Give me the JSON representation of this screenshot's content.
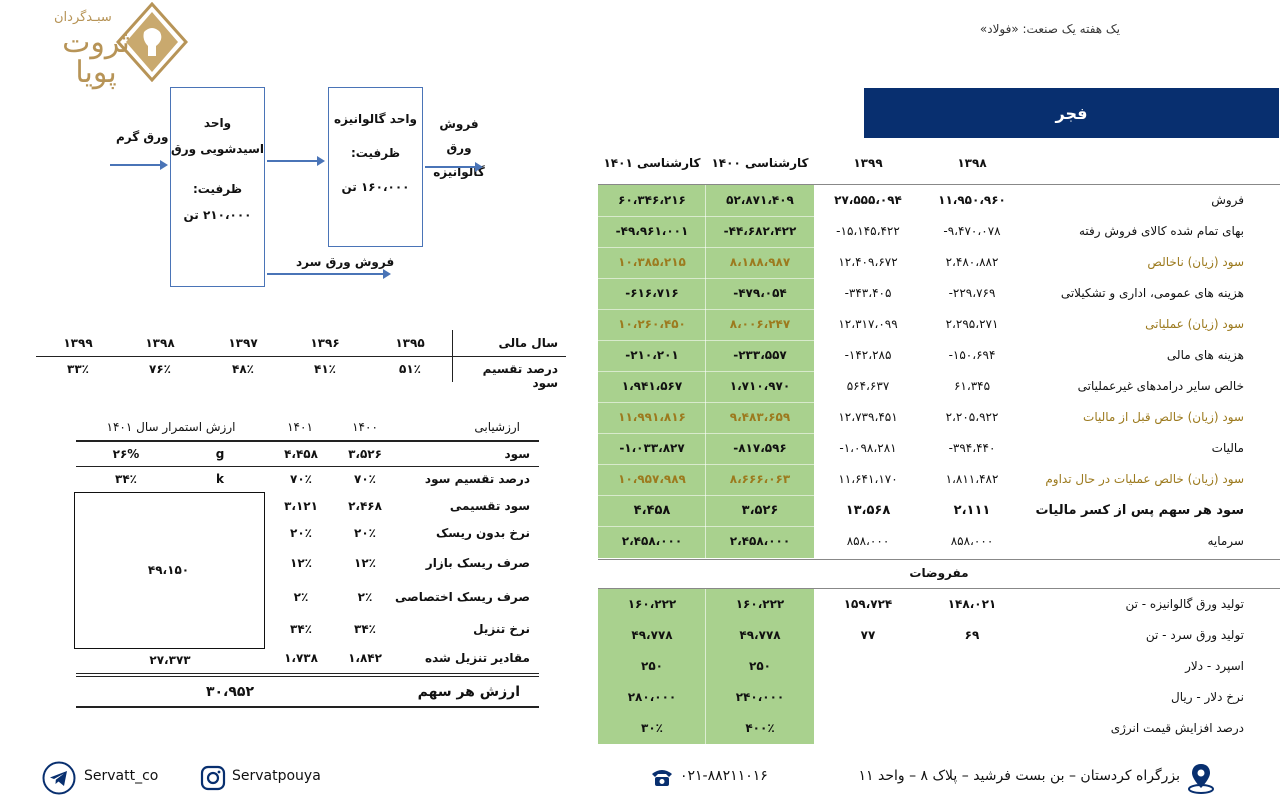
{
  "header": {
    "title": "یک هفته یک صنعت: «فولاد»",
    "logo_top": "سبـدگردان",
    "logo_main": "ثروت پویا"
  },
  "company": "فجر",
  "diagram": {
    "input_label": "ورق گرم",
    "unit1_title": "واحد",
    "unit1_name": "اسیدشویی ورق",
    "unit1_cap_label": "ظرفیت:",
    "unit1_cap": "۲۱۰،۰۰۰ تن",
    "unit2_title": "واحد گالوانیزه",
    "unit2_cap_label": "ظرفیت:",
    "unit2_cap": "۱۶۰،۰۰۰ تن",
    "out1_line1": "فروش ورق",
    "out1_line2": "گالوانیزه",
    "out2": "فروش ورق سرد"
  },
  "dividend_table": {
    "row1_label": "سال مالی",
    "row2_label": "درصد تقسیم سود",
    "years": [
      "۱۳۹۵",
      "۱۳۹۶",
      "۱۳۹۷",
      "۱۳۹۸",
      "۱۳۹۹"
    ],
    "values": [
      "۵۱٪",
      "۴۱٪",
      "۴۸٪",
      "۷۶٪",
      "۳۳٪"
    ]
  },
  "valuation": {
    "headers": {
      "label": "ارزشیابی",
      "c1400": "۱۴۰۰",
      "c1401": "۱۴۰۱",
      "gordon": "ارزش استمرار سال ۱۴۰۱"
    },
    "rows": [
      {
        "label": "سود",
        "v1400": "۳،۵۲۶",
        "v1401": "۴،۴۵۸"
      },
      {
        "label": "درصد تقسیم سود",
        "v1400": "۷۰٪",
        "v1401": "۷۰٪"
      },
      {
        "label": "سود تقسیمی",
        "v1400": "۲،۴۶۸",
        "v1401": "۳،۱۲۱"
      },
      {
        "label": "نرخ بدون ریسک",
        "v1400": "۲۰٪",
        "v1401": "۲۰٪"
      },
      {
        "label": "صرف ریسک بازار",
        "v1400": "۱۲٪",
        "v1401": "۱۲٪"
      },
      {
        "label": "صرف ریسک اختصاصی",
        "v1400": "۲٪",
        "v1401": "۲٪"
      },
      {
        "label": "نرخ تنزیل",
        "v1400": "۳۴٪",
        "v1401": "۳۴٪"
      },
      {
        "label": "مقادیر تنزیل شده",
        "v1400": "۱،۸۴۲",
        "v1401": "۱،۷۳۸"
      }
    ],
    "g_label": "g",
    "g_value": "۲۶%",
    "k_label": "k",
    "k_value": "۳۴٪",
    "terminal_value": "۴۹،۱۵۰",
    "discounted_terminal": "۲۷،۳۷۳",
    "share_value_label": "ارزش هر سهم",
    "share_value": "۳۰،۹۵۲"
  },
  "financials": {
    "headers": [
      "کارشناسی ۱۴۰۱",
      "کارشناسی ۱۴۰۰",
      "۱۳۹۹",
      "۱۳۹۸"
    ],
    "rows": [
      {
        "label": "فروش",
        "gold": false,
        "bold": false,
        "v": [
          "۶۰،۳۴۶،۲۱۶",
          "۵۲،۸۷۱،۴۰۹",
          "۲۷،۵۵۵،۰۹۴",
          "۱۱،۹۵۰،۹۶۰"
        ]
      },
      {
        "label": "بهای تمام شده کالای فروش رفته",
        "gold": false,
        "bold": false,
        "v": [
          "-۴۹،۹۶۱،۰۰۱",
          "-۴۴،۶۸۲،۴۲۲",
          "-۱۵،۱۴۵،۴۲۲",
          "-۹،۴۷۰،۰۷۸"
        ]
      },
      {
        "label": "سود (زیان) ناخالص",
        "gold": true,
        "bold": false,
        "v": [
          "۱۰،۳۸۵،۲۱۵",
          "۸،۱۸۸،۹۸۷",
          "۱۲،۴۰۹،۶۷۲",
          "۲،۴۸۰،۸۸۲"
        ]
      },
      {
        "label": "هزینه های عمومی، اداری و تشکیلاتی",
        "gold": false,
        "bold": false,
        "v": [
          "-۶۱۶،۷۱۶",
          "-۴۷۹،۰۵۴",
          "-۳۴۳،۴۰۵",
          "-۲۲۹،۷۶۹"
        ]
      },
      {
        "label": "سود (زیان) عملیاتی",
        "gold": true,
        "bold": false,
        "v": [
          "۱۰،۲۶۰،۴۵۰",
          "۸،۰۰۶،۲۴۷",
          "۱۲،۳۱۷،۰۹۹",
          "۲،۲۹۵،۲۷۱"
        ]
      },
      {
        "label": "هزینه های مالی",
        "gold": false,
        "bold": false,
        "v": [
          "-۲۱۰،۲۰۱",
          "-۲۳۳،۵۵۷",
          "-۱۴۲،۲۸۵",
          "-۱۵۰،۶۹۴"
        ]
      },
      {
        "label": "خالص سایر درامدهای غیرعملیاتی",
        "gold": false,
        "bold": false,
        "v": [
          "۱،۹۴۱،۵۶۷",
          "۱،۷۱۰،۹۷۰",
          "۵۶۴،۶۳۷",
          "۶۱،۳۴۵"
        ]
      },
      {
        "label": "سود (زیان) خالص  قبل از مالیات",
        "gold": true,
        "bold": false,
        "v": [
          "۱۱،۹۹۱،۸۱۶",
          "۹،۴۸۳،۶۵۹",
          "۱۲،۷۳۹،۴۵۱",
          "۲،۲۰۵،۹۲۲"
        ]
      },
      {
        "label": "مالیات",
        "gold": false,
        "bold": false,
        "v": [
          "-۱،۰۳۳،۸۲۷",
          "-۸۱۷،۵۹۶",
          "-۱،۰۹۸،۲۸۱",
          "-۳۹۴،۴۴۰"
        ]
      },
      {
        "label": "سود (زیان) خالص عملیات در حال تداوم",
        "gold": true,
        "bold": false,
        "v": [
          "۱۰،۹۵۷،۹۸۹",
          "۸،۶۶۶،۰۶۳",
          "۱۱،۶۴۱،۱۷۰",
          "۱،۸۱۱،۴۸۲"
        ]
      },
      {
        "label": "سود هر سهم پس از کسر مالیات",
        "gold": false,
        "bold": true,
        "v": [
          "۴،۴۵۸",
          "۳،۵۲۶",
          "۱۳،۵۶۸",
          "۲،۱۱۱"
        ]
      },
      {
        "label": "سرمایه",
        "gold": false,
        "bold": false,
        "v": [
          "۲،۴۵۸،۰۰۰",
          "۲،۴۵۸،۰۰۰",
          "۸۵۸،۰۰۰",
          "۸۵۸،۰۰۰"
        ]
      }
    ],
    "assumptions_title": "مفروضات",
    "assumptions": [
      {
        "label": "تولید ورق گالوانیزه - تن",
        "v": [
          "۱۶۰،۲۲۲",
          "۱۶۰،۲۲۲",
          "۱۵۹،۷۲۴",
          "۱۴۸،۰۲۱"
        ]
      },
      {
        "label": "تولید ورق سرد - تن",
        "v": [
          "۴۹،۷۷۸",
          "۴۹،۷۷۸",
          "۷۷",
          "۶۹"
        ]
      },
      {
        "label": "اسپرد - دلار",
        "v": [
          "۲۵۰",
          "۲۵۰",
          "",
          ""
        ]
      },
      {
        "label": "نرخ دلار - ریال",
        "v": [
          "۲۸۰،۰۰۰",
          "۲۴۰،۰۰۰",
          "",
          ""
        ]
      },
      {
        "label": "درصد افزایش قیمت انرژی",
        "v": [
          "۳۰٪",
          "۴۰۰٪",
          "",
          ""
        ]
      }
    ]
  },
  "footer": {
    "telegram": "Servatt_co",
    "instagram": "Servatpouya",
    "phone": "۰۲۱-۸۸۲۱۱۰۱۶",
    "address": "بزرگراه کردستان – بن بست فرشید – پلاک ۸ – واحد ۱۱"
  },
  "colors": {
    "navy": "#082f6f",
    "green": "#a9d18e",
    "gold": "#9c7a1e",
    "diagram_blue": "#4a74b7"
  }
}
